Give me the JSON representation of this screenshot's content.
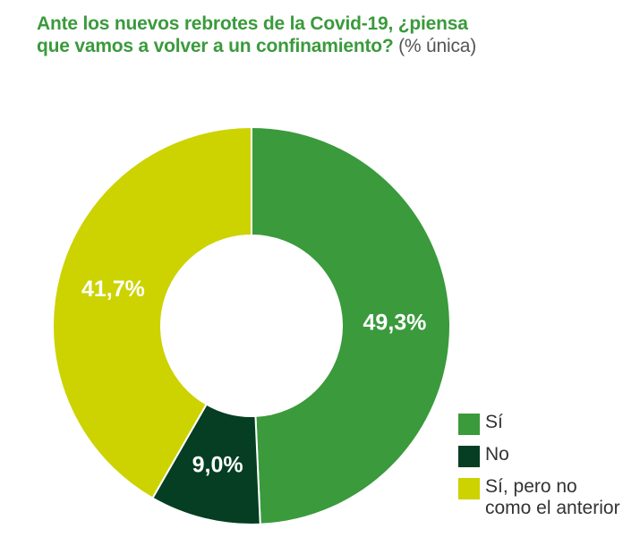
{
  "chart_data": {
    "type": "pie",
    "title_lines": [
      "Ante los nuevos rebrotes de la Covid-19, ¿piensa",
      "que vamos a volver a un confinamiento?"
    ],
    "title_note": "(% única)",
    "donut": true,
    "categories": [
      "Sí",
      "No",
      "Sí, pero no como el anterior"
    ],
    "legend_lines": [
      [
        "Sí"
      ],
      [
        "No"
      ],
      [
        "Sí, pero no",
        "como el anterior"
      ]
    ],
    "values": [
      49.3,
      9.0,
      41.7
    ],
    "data_labels": [
      "49,3%",
      "9,0%",
      "41,7%"
    ],
    "unit": "%",
    "legend_position": "bottom-right"
  },
  "colors": {
    "title": "#3a9a3c",
    "slices": [
      "#3a9a3c",
      "#053e22",
      "#ccd300"
    ],
    "label_text": "#ffffff"
  }
}
